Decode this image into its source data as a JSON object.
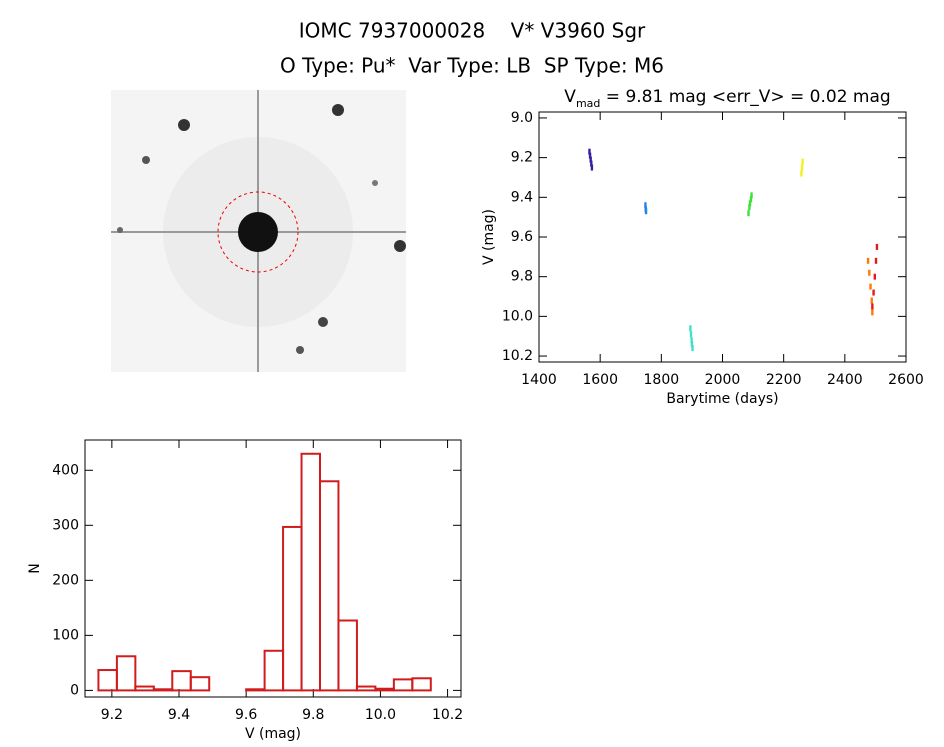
{
  "header": {
    "title": "IOMC 7937000028    V* V3960 Sgr",
    "subtitle": "O Type: Pu*  Var Type: LB  SP Type: M6"
  },
  "chart_data": [
    {
      "type": "scatter",
      "title": [
        "V",
        "mad",
        " = 9.81 mag <err_V> = 0.02 mag"
      ],
      "x_label": "Barytime (days)",
      "y_label": "V (mag)",
      "xlim": [
        1400,
        2600
      ],
      "xticks": [
        1400,
        1600,
        1800,
        2000,
        2200,
        2400,
        2600
      ],
      "ylim": [
        8.97,
        10.23
      ],
      "y_inverted": true,
      "yticks": [
        {
          "value": 9,
          "label": "9.0"
        },
        9.2,
        9.4,
        9.6,
        9.8,
        {
          "value": 10,
          "label": "10.0"
        },
        10.2
      ],
      "series": [
        {
          "color": "#3a1fa0",
          "x": [
            1565,
            1567,
            1569,
            1571,
            1573
          ],
          "values": [
            9.17,
            9.19,
            9.21,
            9.23,
            9.25
          ]
        },
        {
          "color": "#1e88e5",
          "x": [
            1748,
            1749,
            1750
          ],
          "values": [
            9.44,
            9.46,
            9.47
          ]
        },
        {
          "color": "#3fe0c8",
          "x": [
            1895,
            1897,
            1899,
            1900,
            1902
          ],
          "values": [
            10.06,
            10.09,
            10.12,
            10.14,
            10.16
          ]
        },
        {
          "color": "#3ee03a",
          "x": [
            2085,
            2088,
            2090,
            2093,
            2095
          ],
          "values": [
            9.48,
            9.45,
            9.43,
            9.41,
            9.39
          ]
        },
        {
          "color": "#f4f020",
          "x": [
            2258,
            2260,
            2262
          ],
          "values": [
            9.28,
            9.25,
            9.22
          ]
        },
        {
          "color": "#ff7a00",
          "x": [
            2476,
            2480,
            2484,
            2488,
            2490
          ],
          "values": [
            9.72,
            9.78,
            9.85,
            9.92,
            9.98
          ]
        },
        {
          "color": "#e31a1c",
          "x": [
            2490,
            2494,
            2498,
            2502,
            2505
          ],
          "values": [
            9.95,
            9.88,
            9.8,
            9.72,
            9.65
          ]
        }
      ]
    },
    {
      "type": "histogram",
      "x_label": "V (mag)",
      "y_label": "N",
      "color": "#d01c1c",
      "bins": [
        9.16,
        9.215,
        9.27,
        9.325,
        9.38,
        9.435,
        9.49,
        9.545,
        9.6,
        9.655,
        9.71,
        9.765,
        9.82,
        9.875,
        9.93,
        9.985,
        10.04,
        10.095,
        10.15
      ],
      "values": [
        37,
        62,
        7,
        2,
        35,
        24,
        0,
        0,
        2,
        72,
        297,
        430,
        380,
        127,
        7,
        3,
        20,
        22
      ],
      "xlim": [
        9.12,
        10.24
      ],
      "xticks": [
        9.2,
        9.4,
        9.6,
        9.8,
        {
          "value": 10,
          "label": "10.0"
        },
        10.2
      ],
      "ylim": [
        -12,
        455
      ],
      "yticks": [
        0,
        100,
        200,
        300,
        400
      ]
    }
  ]
}
